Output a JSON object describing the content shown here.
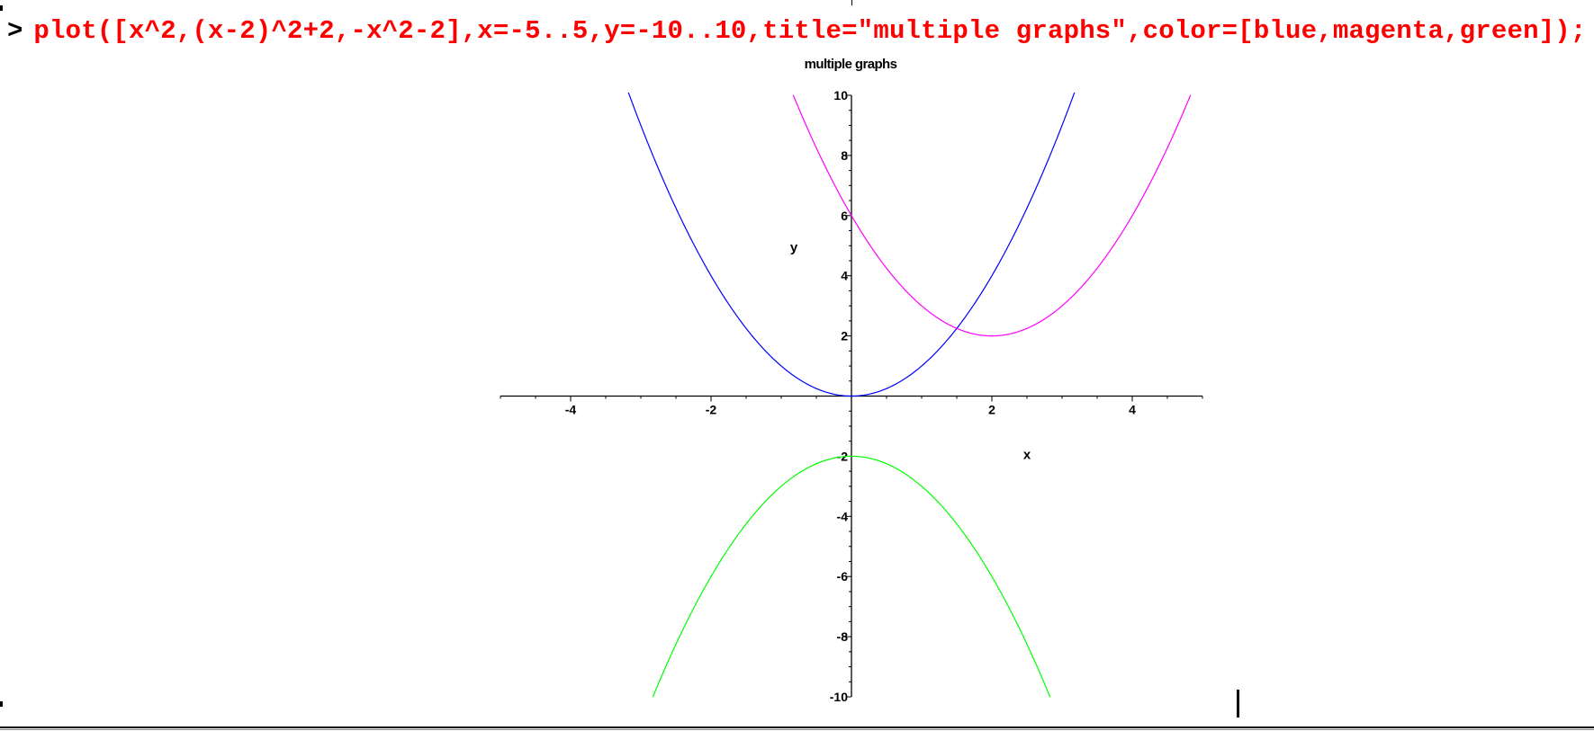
{
  "worksheet": {
    "prompt": ">",
    "command": "plot([x^2,(x-2)^2+2,-x^2-2],x=-5..5,y=-10..10,title=\"multiple graphs\",color=[blue,magenta,green]);"
  },
  "chart_data": {
    "type": "line",
    "title": "multiple graphs",
    "xlabel": "x",
    "ylabel": "y",
    "xlim": [
      -5,
      5
    ],
    "ylim": [
      -10,
      10
    ],
    "x_ticks": [
      -4,
      -2,
      2,
      4
    ],
    "y_ticks": [
      -10,
      -8,
      -6,
      -4,
      -2,
      2,
      4,
      6,
      8,
      10
    ],
    "grid": false,
    "series": [
      {
        "expression": "x^2",
        "color": "#0000ff",
        "x": [
          -3.2,
          -3,
          -2.5,
          -2,
          -1.5,
          -1,
          -0.5,
          0,
          0.5,
          1,
          1.5,
          2,
          2.5,
          3,
          3.2
        ],
        "y": [
          10.2,
          9,
          6.25,
          4,
          2.25,
          1,
          0.25,
          0,
          0.25,
          1,
          2.25,
          4,
          6.25,
          9,
          10.2
        ]
      },
      {
        "expression": "(x-2)^2+2",
        "color": "#ff00ff",
        "x": [
          -0.9,
          -0.5,
          0,
          0.5,
          1,
          1.5,
          2,
          2.5,
          3,
          3.5,
          4,
          4.5,
          4.9
        ],
        "y": [
          10.41,
          8.25,
          6,
          4.25,
          3,
          2.25,
          2,
          2.25,
          3,
          4.25,
          6,
          8.25,
          10.41
        ],
        "x_range": [
          -0.83,
          4.83
        ]
      },
      {
        "expression": "-x^2-2",
        "color": "#00ff00",
        "x": [
          -2.83,
          -2.5,
          -2,
          -1.5,
          -1,
          -0.5,
          0,
          0.5,
          1,
          1.5,
          2,
          2.5,
          2.83
        ],
        "y": [
          -10,
          -8.25,
          -6,
          -4.25,
          -3,
          -2.25,
          -2,
          -2.25,
          -3,
          -4.25,
          -6,
          -8.25,
          -10
        ],
        "x_range": [
          -2.83,
          2.83
        ]
      }
    ]
  }
}
